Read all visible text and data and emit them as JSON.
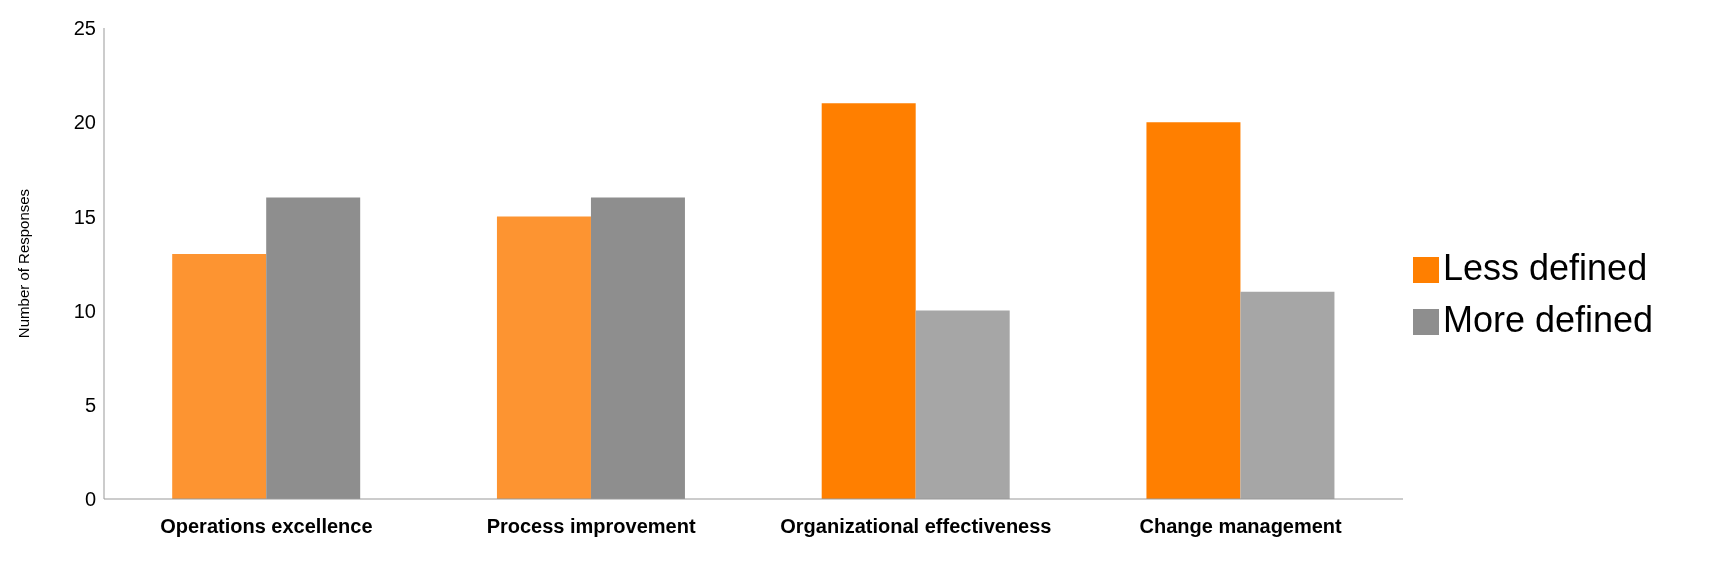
{
  "chart_data": {
    "type": "bar",
    "ylabel": "Number of Responses",
    "categories": [
      "Operations excellence",
      "Process improvement",
      "Organizational effectiveness",
      "Change management"
    ],
    "series": [
      {
        "name": "Less defined",
        "color": "#ff7f00",
        "colors": [
          "#fd9431",
          "#fd9431",
          "#ff7f00",
          "#ff7f00"
        ],
        "values": [
          13,
          15,
          21,
          20
        ]
      },
      {
        "name": "More defined",
        "color": "#8e8e8e",
        "colors": [
          "#8e8e8e",
          "#8e8e8e",
          "#a6a6a6",
          "#a6a6a6"
        ],
        "values": [
          16,
          16,
          10,
          11
        ]
      }
    ],
    "ylim": [
      0,
      25
    ],
    "yticks": [
      0,
      5,
      10,
      15,
      20,
      25
    ],
    "legend": "right",
    "grid": false
  }
}
